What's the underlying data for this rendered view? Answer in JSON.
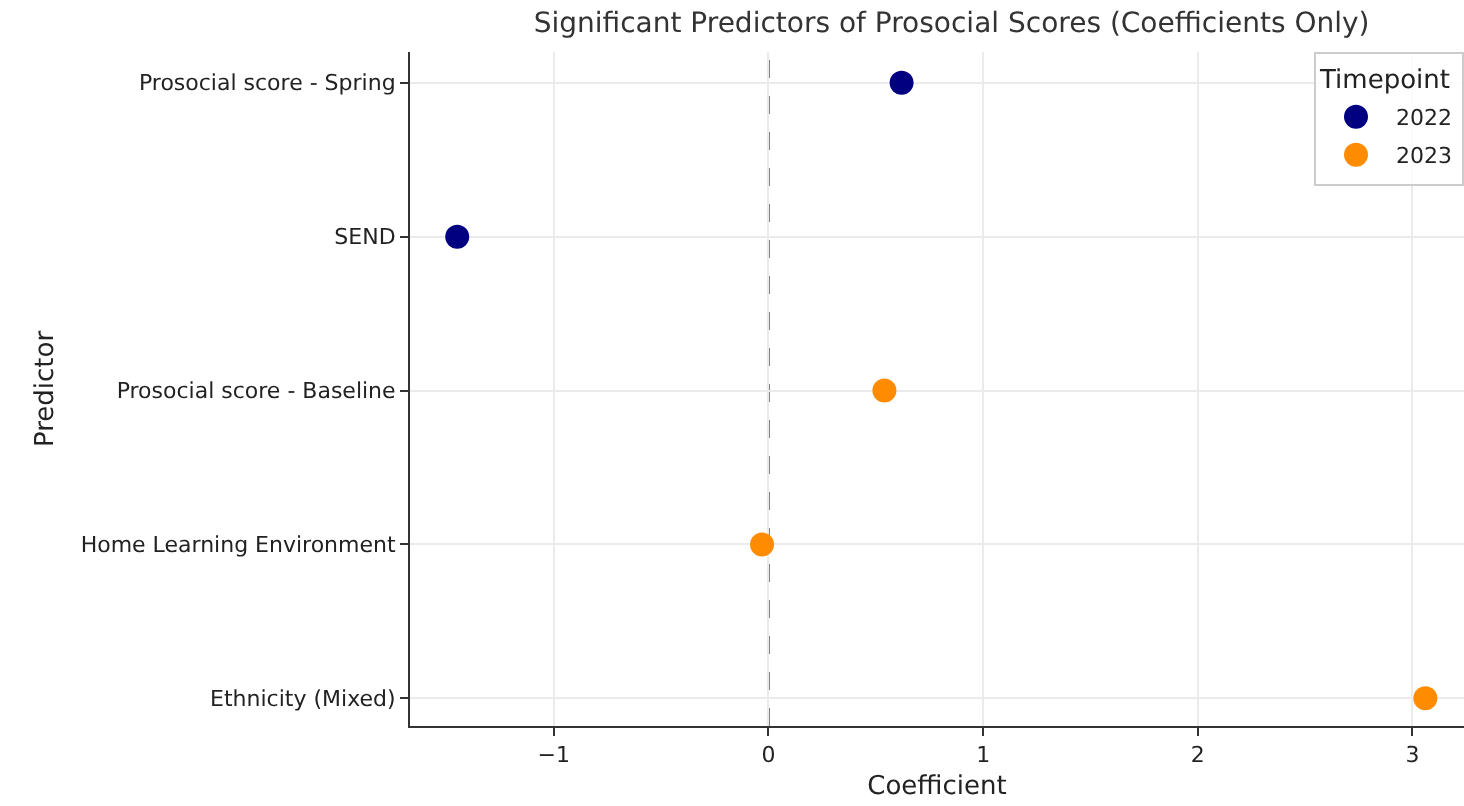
{
  "chart_data": {
    "type": "scatter",
    "orientation": "horizontal",
    "title": "Significant Predictors of Prosocial Scores (Coefficients Only)",
    "xlabel": "Coefficient",
    "ylabel": "Predictor",
    "legend_title": "Timepoint",
    "categories": [
      "Prosocial score - Spring",
      "SEND",
      "Prosocial score - Baseline",
      "Home Learning Environment",
      "Ethnicity (Mixed)"
    ],
    "series": [
      {
        "name": "2022",
        "color": "#000080",
        "values": [
          0.62,
          -1.45,
          null,
          null,
          null
        ]
      },
      {
        "name": "2023",
        "color": "#ff8c00",
        "values": [
          null,
          null,
          0.54,
          -0.03,
          3.06
        ]
      }
    ],
    "xlim": [
      -1.67,
      3.24
    ],
    "xticks": [
      {
        "value": -1,
        "label": "−1"
      },
      0,
      1,
      2,
      3
    ],
    "ref_lines": [
      {
        "axis": "x",
        "value": 0,
        "color": "#808080",
        "line_style": "dashed"
      }
    ],
    "grid": true,
    "legend": "top right",
    "marker": "circle"
  }
}
